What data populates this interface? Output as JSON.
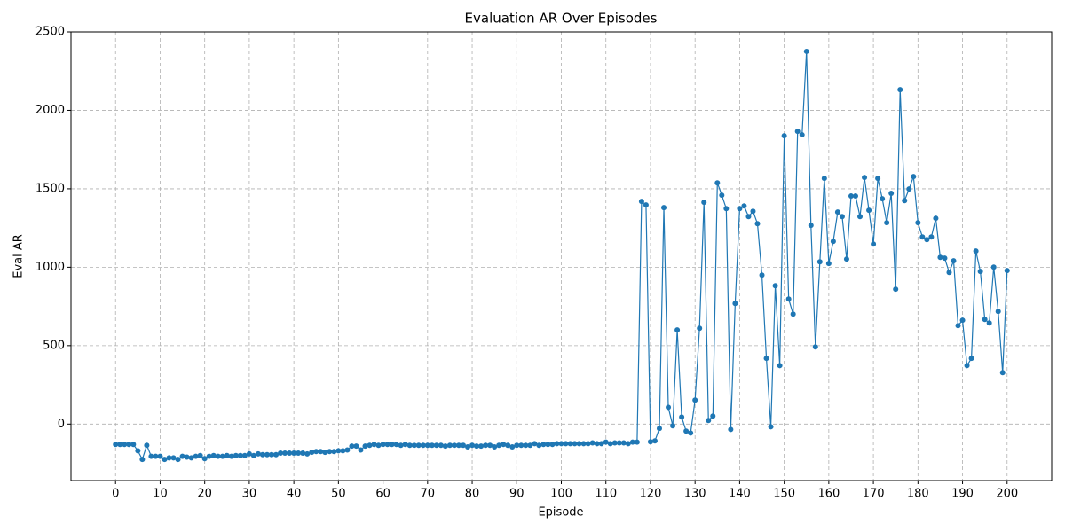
{
  "chart_data": {
    "type": "line",
    "title": "Evaluation AR Over Episodes",
    "x_label": "Episode",
    "y_label": "Eval AR",
    "x": [
      0,
      1,
      2,
      3,
      4,
      5,
      6,
      7,
      8,
      9,
      10,
      11,
      12,
      13,
      14,
      15,
      16,
      17,
      18,
      19,
      20,
      21,
      22,
      23,
      24,
      25,
      26,
      27,
      28,
      29,
      30,
      31,
      32,
      33,
      34,
      35,
      36,
      37,
      38,
      39,
      40,
      41,
      42,
      43,
      44,
      45,
      46,
      47,
      48,
      49,
      50,
      51,
      52,
      53,
      54,
      55,
      56,
      57,
      58,
      59,
      60,
      61,
      62,
      63,
      64,
      65,
      66,
      67,
      68,
      69,
      70,
      71,
      72,
      73,
      74,
      75,
      76,
      77,
      78,
      79,
      80,
      81,
      82,
      83,
      84,
      85,
      86,
      87,
      88,
      89,
      90,
      91,
      92,
      93,
      94,
      95,
      96,
      97,
      98,
      99,
      100,
      101,
      102,
      103,
      104,
      105,
      106,
      107,
      108,
      109,
      110,
      111,
      112,
      113,
      114,
      115,
      116,
      117,
      118,
      119,
      120,
      121,
      122,
      123,
      124,
      125,
      126,
      127,
      128,
      129,
      130,
      131,
      132,
      133,
      134,
      135,
      136,
      137,
      138,
      139,
      140,
      141,
      142,
      143,
      144,
      145,
      146,
      147,
      148,
      149,
      150,
      151,
      152,
      153,
      154,
      155,
      156,
      157,
      158,
      159,
      160,
      161,
      162,
      163,
      164,
      165,
      166,
      167,
      168,
      169,
      170,
      171,
      172,
      173,
      174,
      175,
      176,
      177,
      178,
      179,
      180,
      181,
      182,
      183,
      184,
      185,
      186,
      187,
      188,
      189,
      190,
      191,
      192,
      193,
      194,
      195,
      196,
      197,
      198,
      199,
      200
    ],
    "series": [
      {
        "color": "#1f77b4",
        "values": [
          -130,
          -130,
          -130,
          -130,
          -130,
          -170,
          -225,
          -135,
          -205,
          -205,
          -205,
          -225,
          -215,
          -215,
          -225,
          -205,
          -210,
          -215,
          -205,
          -200,
          -220,
          -205,
          -200,
          -205,
          -205,
          -200,
          -205,
          -200,
          -200,
          -200,
          -190,
          -200,
          -190,
          -195,
          -195,
          -195,
          -195,
          -185,
          -185,
          -185,
          -185,
          -185,
          -185,
          -190,
          -180,
          -175,
          -175,
          -180,
          -175,
          -175,
          -170,
          -170,
          -165,
          -140,
          -140,
          -165,
          -140,
          -135,
          -130,
          -135,
          -130,
          -130,
          -130,
          -130,
          -135,
          -130,
          -135,
          -135,
          -135,
          -135,
          -135,
          -135,
          -135,
          -135,
          -140,
          -135,
          -135,
          -135,
          -135,
          -145,
          -135,
          -140,
          -140,
          -135,
          -135,
          -145,
          -135,
          -130,
          -135,
          -145,
          -135,
          -135,
          -135,
          -135,
          -125,
          -135,
          -130,
          -130,
          -130,
          -125,
          -125,
          -125,
          -125,
          -125,
          -125,
          -125,
          -125,
          -120,
          -125,
          -125,
          -115,
          -125,
          -120,
          -120,
          -120,
          -125,
          -115,
          -115,
          1420,
          1397,
          -113,
          -107,
          -28,
          1380,
          107,
          -11,
          600,
          45,
          -45,
          -57,
          153,
          611,
          1414,
          23,
          51,
          1538,
          1459,
          1374,
          -34,
          769,
          1374,
          1391,
          1323,
          1357,
          1278,
          950,
          419,
          -17,
          882,
          373,
          1838,
          797,
          701,
          1866,
          1844,
          2376,
          1267,
          492,
          1035,
          1567,
          1024,
          1165,
          1352,
          1323,
          1052,
          1454,
          1454,
          1323,
          1572,
          1363,
          1148,
          1567,
          1437,
          1284,
          1471,
          860,
          2132,
          1425,
          1499,
          1578,
          1284,
          1193,
          1176,
          1193,
          1312,
          1063,
          1058,
          967,
          1041,
          628,
          662,
          373,
          419,
          1103,
          973,
          667,
          645,
          1001,
          718,
          328,
          979
        ]
      }
    ],
    "xlim": [
      -10,
      210
    ],
    "ylim": [
      -360,
      2500
    ],
    "xticks": [
      0,
      10,
      20,
      30,
      40,
      50,
      60,
      70,
      80,
      90,
      100,
      110,
      120,
      130,
      140,
      150,
      160,
      170,
      180,
      190,
      200
    ],
    "yticks": [
      0,
      500,
      1000,
      1500,
      2000,
      2500
    ],
    "grid": true
  }
}
